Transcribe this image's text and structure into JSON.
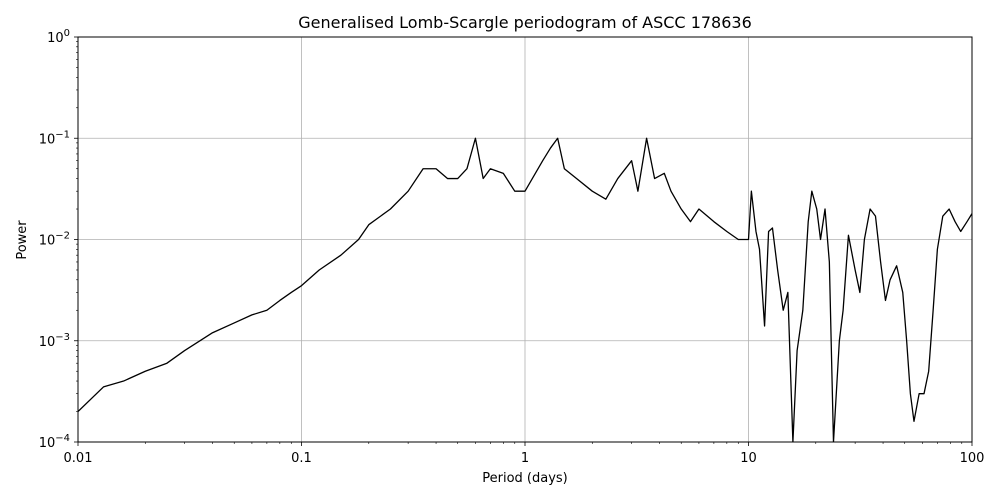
{
  "chart_data": {
    "type": "line",
    "title": "Generalised Lomb-Scargle periodogram of ASCC 178636",
    "xlabel": "Period (days)",
    "ylabel": "Power",
    "xscale": "log",
    "yscale": "log",
    "xlim": [
      0.01,
      100
    ],
    "ylim": [
      0.0001,
      1
    ],
    "grid": true,
    "x_ticks": [
      {
        "value": 0.01,
        "label": "0.01"
      },
      {
        "value": 0.1,
        "label": "0.1"
      },
      {
        "value": 1,
        "label": "1"
      },
      {
        "value": 10,
        "label": "10"
      },
      {
        "value": 100,
        "label": "100"
      }
    ],
    "y_ticks": [
      {
        "value": 0.0001,
        "base": "10",
        "exp": "−4"
      },
      {
        "value": 0.001,
        "base": "10",
        "exp": "−3"
      },
      {
        "value": 0.01,
        "base": "10",
        "exp": "−2"
      },
      {
        "value": 0.1,
        "base": "10",
        "exp": "−1"
      },
      {
        "value": 1,
        "base": "10",
        "exp": "0"
      }
    ],
    "line_color": "#000000",
    "series": [
      {
        "points": [
          [
            0.01,
            0.0002
          ],
          [
            0.013,
            0.00035
          ],
          [
            0.016,
            0.0004
          ],
          [
            0.02,
            0.0005
          ],
          [
            0.025,
            0.0006
          ],
          [
            0.03,
            0.0008
          ],
          [
            0.04,
            0.0012
          ],
          [
            0.05,
            0.0015
          ],
          [
            0.06,
            0.0018
          ],
          [
            0.07,
            0.002
          ],
          [
            0.08,
            0.0025
          ],
          [
            0.09,
            0.003
          ],
          [
            0.1,
            0.0035
          ],
          [
            0.12,
            0.005
          ],
          [
            0.15,
            0.007
          ],
          [
            0.18,
            0.01
          ],
          [
            0.2,
            0.014
          ],
          [
            0.25,
            0.02
          ],
          [
            0.3,
            0.03
          ],
          [
            0.35,
            0.05
          ],
          [
            0.4,
            0.05
          ],
          [
            0.45,
            0.04
          ],
          [
            0.5,
            0.04
          ],
          [
            0.55,
            0.05
          ],
          [
            0.6,
            0.1
          ],
          [
            0.65,
            0.04
          ],
          [
            0.7,
            0.05
          ],
          [
            0.8,
            0.045
          ],
          [
            0.9,
            0.03
          ],
          [
            1.0,
            0.03
          ],
          [
            1.2,
            0.06
          ],
          [
            1.3,
            0.08
          ],
          [
            1.4,
            0.1
          ],
          [
            1.5,
            0.05
          ],
          [
            1.7,
            0.04
          ],
          [
            2.0,
            0.03
          ],
          [
            2.3,
            0.025
          ],
          [
            2.6,
            0.04
          ],
          [
            3.0,
            0.06
          ],
          [
            3.2,
            0.03
          ],
          [
            3.5,
            0.1
          ],
          [
            3.8,
            0.04
          ],
          [
            4.2,
            0.045
          ],
          [
            4.5,
            0.03
          ],
          [
            5.0,
            0.02
          ],
          [
            5.5,
            0.015
          ],
          [
            6.0,
            0.02
          ],
          [
            7.0,
            0.015
          ],
          [
            8.0,
            0.012
          ],
          [
            9.0,
            0.01
          ],
          [
            10.0,
            0.01
          ],
          [
            10.3,
            0.03
          ],
          [
            10.8,
            0.012
          ],
          [
            11.2,
            0.008
          ],
          [
            11.8,
            0.0014
          ],
          [
            12.3,
            0.012
          ],
          [
            12.8,
            0.013
          ],
          [
            13.5,
            0.005
          ],
          [
            14.3,
            0.002
          ],
          [
            15.0,
            0.003
          ],
          [
            15.8,
            0.0001
          ],
          [
            16.5,
            0.0008
          ],
          [
            17.5,
            0.002
          ],
          [
            18.5,
            0.015
          ],
          [
            19.2,
            0.03
          ],
          [
            20.2,
            0.02
          ],
          [
            21.0,
            0.01
          ],
          [
            22.0,
            0.02
          ],
          [
            23.0,
            0.006
          ],
          [
            24.0,
            0.0001
          ],
          [
            25.5,
            0.001
          ],
          [
            26.5,
            0.002
          ],
          [
            28.0,
            0.011
          ],
          [
            30.0,
            0.005
          ],
          [
            31.5,
            0.003
          ],
          [
            33.0,
            0.01
          ],
          [
            35.0,
            0.02
          ],
          [
            37.0,
            0.017
          ],
          [
            39.0,
            0.006
          ],
          [
            41.0,
            0.0025
          ],
          [
            43.0,
            0.004
          ],
          [
            46.0,
            0.0055
          ],
          [
            49.0,
            0.003
          ],
          [
            51.0,
            0.001
          ],
          [
            53.0,
            0.0003
          ],
          [
            55.0,
            0.00016
          ],
          [
            58.0,
            0.0003
          ],
          [
            61.0,
            0.0003
          ],
          [
            64.0,
            0.0005
          ],
          [
            67.0,
            0.002
          ],
          [
            70.0,
            0.008
          ],
          [
            74.0,
            0.017
          ],
          [
            79.0,
            0.02
          ],
          [
            84.0,
            0.015
          ],
          [
            89.0,
            0.012
          ],
          [
            95.0,
            0.015
          ],
          [
            100.0,
            0.018
          ]
        ]
      }
    ]
  }
}
